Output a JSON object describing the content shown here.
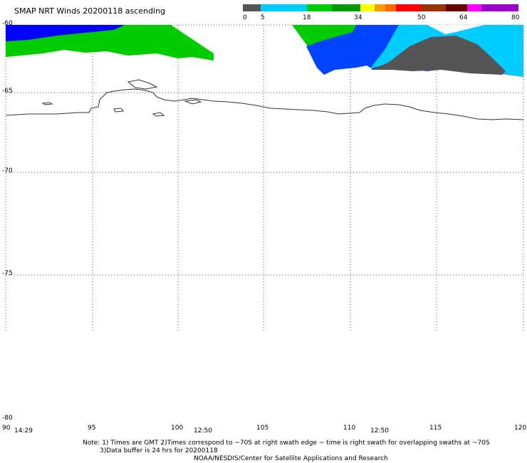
{
  "title": "SMAP NRT Winds 20200118 ascending",
  "colorbar": {
    "segments": [
      {
        "color": "#555555"
      },
      {
        "color": "#00ccff"
      },
      {
        "color": "#0000ff"
      },
      {
        "color": "#00cc00"
      },
      {
        "color": "#009900"
      },
      {
        "color": "#ffff00"
      },
      {
        "color": "#ff9900"
      },
      {
        "color": "#ff0000"
      },
      {
        "color": "#990000"
      },
      {
        "color": "#993300"
      },
      {
        "color": "#cc66cc"
      },
      {
        "color": "#ff00ff"
      },
      {
        "color": "#9900cc"
      }
    ],
    "labels": [
      "0",
      "5",
      "18",
      "34",
      "50",
      "64",
      "80"
    ]
  },
  "lat_labels": [
    "-60",
    "-65",
    "-70",
    "-75",
    "-80"
  ],
  "lon_labels": [
    "90",
    "95",
    "100",
    "105",
    "110",
    "115",
    "120"
  ],
  "time_labels": [
    "14:29",
    "12:50",
    "12:50"
  ],
  "note": {
    "line1": "Note: 1) Times are GMT 2)Times correspond to ~70S at right swath edge ~ time is right swath for overlapping swaths at ~70S",
    "line2": "3)Data buffer is 24 hrs for 20200118",
    "line3": "NOAA/NESDIS/Center for Satellite Applications and Research"
  }
}
